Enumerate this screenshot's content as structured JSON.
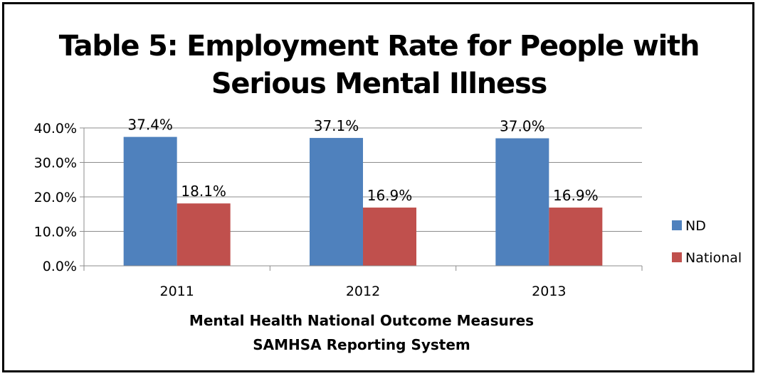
{
  "chart_data": {
    "type": "bar",
    "title_lines": [
      "Table 5: Employment Rate for People with",
      "Serious Mental Illness"
    ],
    "categories": [
      "2011",
      "2012",
      "2013"
    ],
    "series": [
      {
        "name": "ND",
        "values": [
          37.4,
          37.1,
          37.0
        ],
        "labels": [
          "37.4%",
          "37.1%",
          "37.0%"
        ],
        "color": "#4F81BD"
      },
      {
        "name": "National",
        "values": [
          18.1,
          16.9,
          16.9
        ],
        "labels": [
          "18.1%",
          "16.9%",
          "16.9%"
        ],
        "color": "#C0504D"
      }
    ],
    "yticks": [
      "0.0%",
      "10.0%",
      "20.0%",
      "30.0%",
      "40.0%"
    ],
    "ylim": [
      0,
      40
    ],
    "xlabel_lines": [
      "Mental Health National Outcome Measures",
      "SAMHSA Reporting System"
    ],
    "grid": true,
    "legend_position": "right"
  }
}
